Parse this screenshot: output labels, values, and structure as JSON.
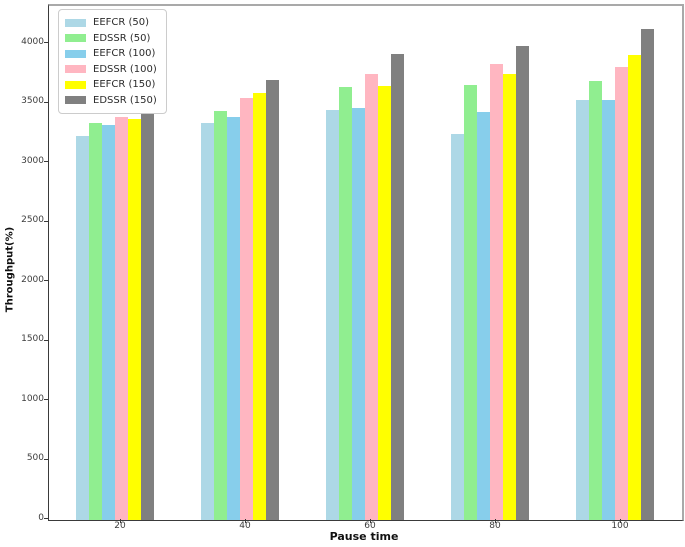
{
  "chart_data": {
    "type": "bar",
    "title": "",
    "xlabel": "Pause time",
    "ylabel": "Throughput(%)",
    "categories": [
      "20",
      "40",
      "60",
      "80",
      "100"
    ],
    "series": [
      {
        "name": "EEFCR (50)",
        "color": "#add8e6",
        "values": [
          3230,
          3340,
          3450,
          3240,
          3530
        ]
      },
      {
        "name": "EDSSR (50)",
        "color": "#90ee90",
        "values": [
          3340,
          3440,
          3640,
          3660,
          3690
        ]
      },
      {
        "name": "EEFCR (100)",
        "color": "#87ceeb",
        "values": [
          3320,
          3390,
          3460,
          3430,
          3530
        ]
      },
      {
        "name": "EDSSR (100)",
        "color": "#ffb6c1",
        "values": [
          3390,
          3550,
          3750,
          3830,
          3810
        ]
      },
      {
        "name": "EEFCR (150)",
        "color": "#ffff00",
        "values": [
          3370,
          3590,
          3650,
          3750,
          3910
        ]
      },
      {
        "name": "EDSSR (150)",
        "color": "#808080",
        "values": [
          3530,
          3700,
          3920,
          3980,
          4130
        ]
      }
    ],
    "ylim": [
      0,
      4320
    ],
    "yticks": [
      0,
      500,
      1000,
      1500,
      2000,
      2500,
      3000,
      3500,
      4000
    ],
    "grid": false,
    "legend_position": "upper left",
    "spine_colors": {
      "left_bottom": "#3a3a3a",
      "top_right": "#a9a9a9"
    }
  }
}
